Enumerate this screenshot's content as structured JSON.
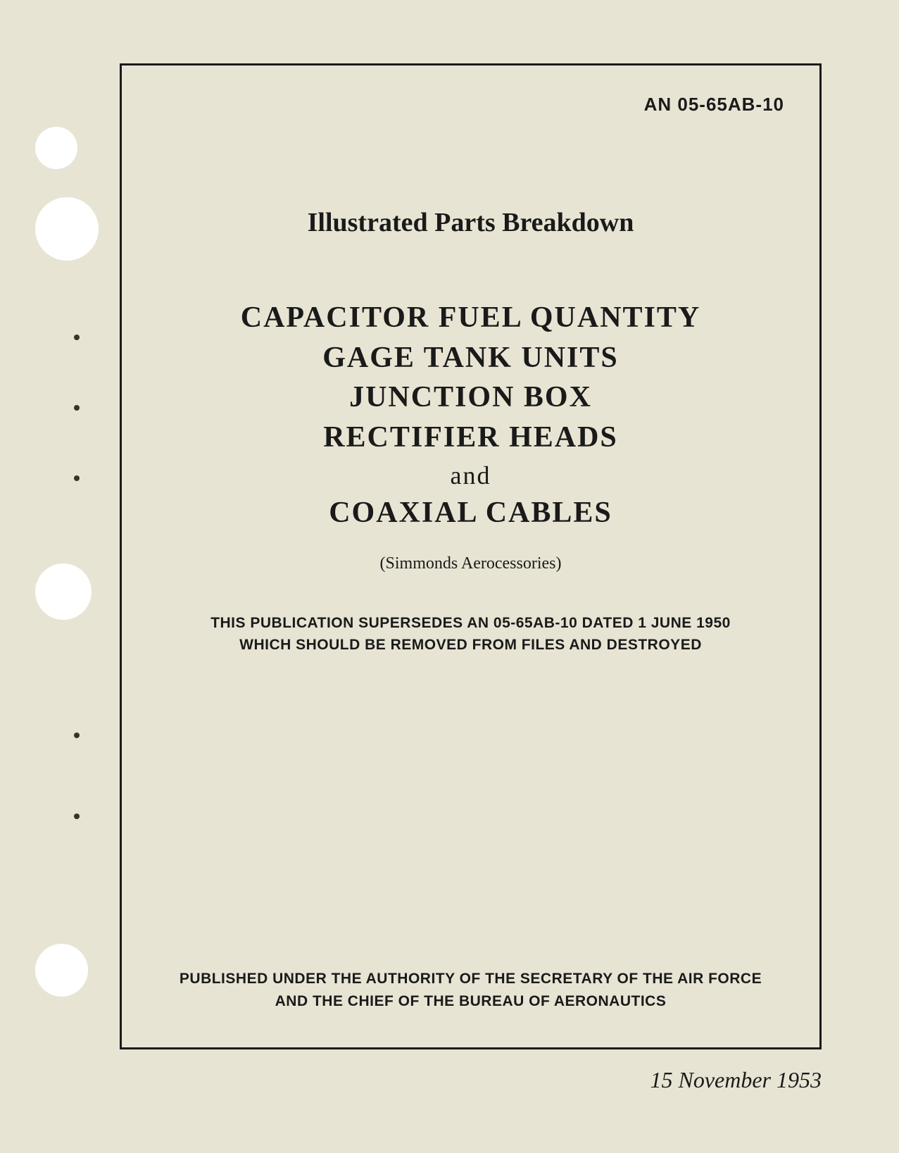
{
  "page": {
    "background_color": "#e8e4d4",
    "border_color": "#1a1a1a",
    "text_color": "#1a1a1a",
    "hole_color": "#ffffff"
  },
  "doc_number": "AN 05-65AB-10",
  "subtitle": "Illustrated Parts Breakdown",
  "title": {
    "line1": "CAPACITOR FUEL QUANTITY",
    "line2": "GAGE TANK UNITS",
    "line3": "JUNCTION BOX",
    "line4": "RECTIFIER HEADS",
    "line5": "and",
    "line6": "COAXIAL CABLES"
  },
  "manufacturer": "(Simmonds Aerocessories)",
  "supersedes": {
    "line1": "THIS PUBLICATION SUPERSEDES AN 05-65AB-10 DATED 1 JUNE 1950",
    "line2": "WHICH SHOULD BE REMOVED FROM FILES AND DESTROYED"
  },
  "authority": {
    "line1": "PUBLISHED UNDER THE AUTHORITY OF THE SECRETARY OF THE AIR FORCE",
    "line2": "AND THE CHIEF OF THE BUREAU OF AERONAUTICS"
  },
  "date": "15 November 1953",
  "typography": {
    "doc_number_fontsize": 26,
    "subtitle_fontsize": 38,
    "title_fontsize": 42,
    "title_and_fontsize": 36,
    "manufacturer_fontsize": 24,
    "supersedes_fontsize": 21,
    "authority_fontsize": 21,
    "date_fontsize": 32
  }
}
